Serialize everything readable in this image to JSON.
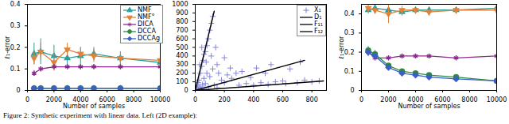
{
  "caption": "Figure 2: Synthetic experiment with linear data. Left (2D example):",
  "chart_data": [
    {
      "type": "line",
      "x_label": "Number of samples",
      "y_label": "ℓ₁-error",
      "x": [
        500,
        1000,
        2000,
        3000,
        4000,
        5000,
        7000,
        10000
      ],
      "xlim": [
        0,
        10000
      ],
      "xticks": [
        0,
        2000,
        4000,
        6000,
        8000,
        10000
      ],
      "ylim": [
        0,
        0.4
      ],
      "yticks": [
        0,
        0.1,
        0.2,
        0.3,
        0.4
      ],
      "legend": "upper right",
      "series": [
        {
          "name": "NMF",
          "color": "#2a9d9d",
          "marker": "triangle-up",
          "values": [
            0.17,
            0.18,
            0.16,
            0.15,
            0.16,
            0.17,
            0.15,
            0.13
          ],
          "errors": [
            0.05,
            0.06,
            0.05,
            0.04,
            0.04,
            0.03,
            0.03,
            0.03
          ]
        },
        {
          "name": "NMF°",
          "color": "#e0823a",
          "marker": "triangle-down",
          "values": [
            0.15,
            0.18,
            0.13,
            0.19,
            0.17,
            0.16,
            0.15,
            0.14
          ],
          "errors": [
            0.03,
            0.04,
            0.04,
            0.03,
            0.03,
            0.03,
            0.03,
            0.02
          ]
        },
        {
          "name": "DICA",
          "color": "#8b2a8b",
          "marker": "asterisk",
          "values": [
            0.08,
            0.1,
            0.11,
            0.11,
            0.11,
            0.11,
            0.11,
            0.11
          ],
          "errors": [
            0.01,
            0.01,
            0.01,
            0.01,
            0.01,
            0.01,
            0.01,
            0.01
          ]
        },
        {
          "name": "DCCA",
          "color": "#2e8b3e",
          "marker": "circle",
          "values": [
            0.01,
            0.01,
            0.01,
            0.01,
            0.01,
            0.01,
            0.01,
            0.01
          ],
          "errors": [
            0.003,
            0.003,
            0.003,
            0.003,
            0.003,
            0.003,
            0.003,
            0.003
          ]
        },
        {
          "name": "DCCAg",
          "color": "#3a5fc8",
          "marker": "diamond",
          "values": [
            0.01,
            0.01,
            0.01,
            0.01,
            0.01,
            0.01,
            0.01,
            0.01
          ],
          "errors": [
            0.003,
            0.003,
            0.003,
            0.003,
            0.003,
            0.003,
            0.003,
            0.003
          ]
        }
      ]
    },
    {
      "type": "scatter",
      "xlim": [
        0,
        900
      ],
      "xticks": [
        0,
        200,
        400,
        600,
        800
      ],
      "ylim": [
        0,
        1000
      ],
      "yticks": [
        0,
        100,
        200,
        300,
        400,
        500,
        600,
        700,
        800,
        900,
        1000
      ],
      "legend": "upper right",
      "series": [
        {
          "name": "X₁",
          "type": "scatter",
          "color": "#7b7bd8",
          "marker": "plus",
          "x": [
            10,
            20,
            30,
            15,
            40,
            50,
            60,
            25,
            35,
            45,
            55,
            70,
            80,
            90,
            100,
            110,
            120,
            20,
            60,
            80,
            100,
            120,
            150,
            180,
            200,
            220,
            250,
            280,
            300,
            320,
            350,
            380,
            400,
            420,
            450,
            480,
            500,
            520,
            550,
            600,
            620,
            650,
            700,
            720,
            750,
            800,
            850,
            70,
            90,
            130,
            150,
            160,
            200,
            240,
            60,
            75,
            110,
            140,
            30,
            45
          ],
          "y": [
            20,
            15,
            40,
            60,
            25,
            70,
            30,
            120,
            200,
            280,
            350,
            450,
            520,
            600,
            700,
            780,
            860,
            90,
            140,
            200,
            160,
            250,
            300,
            120,
            90,
            180,
            140,
            200,
            60,
            220,
            80,
            150,
            60,
            260,
            90,
            200,
            70,
            300,
            100,
            110,
            80,
            250,
            90,
            330,
            120,
            100,
            110,
            80,
            40,
            60,
            30,
            200,
            380,
            260,
            420,
            330,
            400,
            500,
            300,
            500
          ]
        },
        {
          "name": "D₁",
          "type": "line",
          "color": "#000000",
          "line_style": "solid",
          "x": [
            0,
            130
          ],
          "y": [
            0,
            920
          ]
        },
        {
          "name": "F₁₁",
          "type": "line",
          "color": "#000000",
          "line_style": "solid",
          "x": [
            0,
            750
          ],
          "y": [
            0,
            350
          ]
        },
        {
          "name": "F₁₂",
          "type": "line",
          "color": "#000000",
          "line_style": "solid",
          "x": [
            0,
            880
          ],
          "y": [
            0,
            110
          ]
        }
      ]
    },
    {
      "type": "line",
      "x_label": "Number of samples",
      "y_label": "ℓ₁-error",
      "x": [
        500,
        1000,
        2000,
        3000,
        4000,
        5000,
        7000,
        10000
      ],
      "xlim": [
        0,
        10000
      ],
      "xticks": [
        0,
        2000,
        4000,
        6000,
        8000,
        10000
      ],
      "ylim": [
        0,
        0.45
      ],
      "yticks": [
        0,
        0.1,
        0.2,
        0.3,
        0.4
      ],
      "series": [
        {
          "name": "NMF",
          "color": "#2a9d9d",
          "marker": "triangle-up",
          "values": [
            0.42,
            0.43,
            0.42,
            0.41,
            0.42,
            0.42,
            0.42,
            0.43
          ],
          "errors": [
            0.02,
            0.02,
            0.02,
            0.02,
            0.01,
            0.01,
            0.01,
            0.01
          ]
        },
        {
          "name": "NMF°",
          "color": "#e0823a",
          "marker": "triangle-down",
          "values": [
            0.43,
            0.42,
            0.4,
            0.42,
            0.42,
            0.41,
            0.42,
            0.42
          ],
          "errors": [
            0.02,
            0.02,
            0.05,
            0.02,
            0.01,
            0.01,
            0.01,
            0.01
          ]
        },
        {
          "name": "DICA",
          "color": "#8b2a8b",
          "marker": "asterisk",
          "values": [
            0.2,
            0.17,
            0.17,
            0.18,
            0.18,
            0.18,
            0.17,
            0.18
          ],
          "errors": [
            0.02,
            0.01,
            0.01,
            0.01,
            0.01,
            0.01,
            0.01,
            0.01
          ]
        },
        {
          "name": "DCCA",
          "color": "#2e8b3e",
          "marker": "circle",
          "values": [
            0.21,
            0.19,
            0.13,
            0.1,
            0.09,
            0.08,
            0.07,
            0.05
          ],
          "errors": [
            0.02,
            0.02,
            0.01,
            0.01,
            0.01,
            0.01,
            0.01,
            0.01
          ]
        },
        {
          "name": "DCCAg",
          "color": "#3a5fc8",
          "marker": "diamond",
          "values": [
            0.2,
            0.18,
            0.12,
            0.09,
            0.08,
            0.07,
            0.06,
            0.05
          ],
          "errors": [
            0.02,
            0.02,
            0.01,
            0.01,
            0.01,
            0.01,
            0.01,
            0.01
          ]
        }
      ]
    }
  ]
}
